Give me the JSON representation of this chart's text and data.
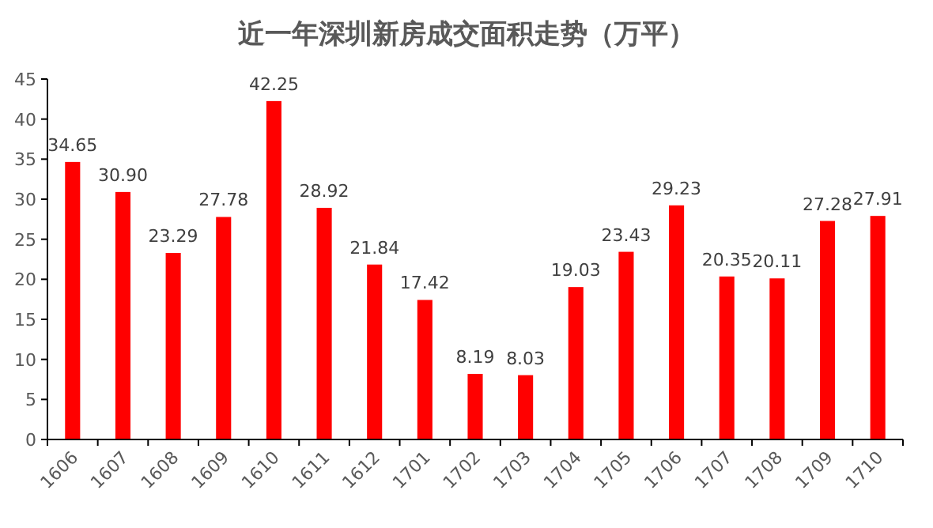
{
  "chart_data": {
    "type": "bar",
    "title": "近一年深圳新房成交面积走势（万平）",
    "categories": [
      "1606",
      "1607",
      "1608",
      "1609",
      "1610",
      "1611",
      "1612",
      "1701",
      "1702",
      "1703",
      "1704",
      "1705",
      "1706",
      "1707",
      "1708",
      "1709",
      "1710"
    ],
    "values": [
      34.65,
      30.9,
      23.29,
      27.78,
      42.25,
      28.92,
      21.84,
      17.42,
      8.19,
      8.03,
      19.03,
      23.43,
      29.23,
      20.35,
      20.11,
      27.28,
      27.91
    ],
    "value_labels": [
      "34.65",
      "30.90",
      "23.29",
      "27.78",
      "42.25",
      "28.92",
      "21.84",
      "17.42",
      "8.19",
      "8.03",
      "19.03",
      "23.43",
      "29.23",
      "20.35",
      "20.11",
      "27.28",
      "27.91"
    ],
    "color": "#ff0000",
    "ylim": [
      0,
      45
    ],
    "yticks": [
      0,
      5,
      10,
      15,
      20,
      25,
      30,
      35,
      40,
      45
    ],
    "grid": false
  }
}
